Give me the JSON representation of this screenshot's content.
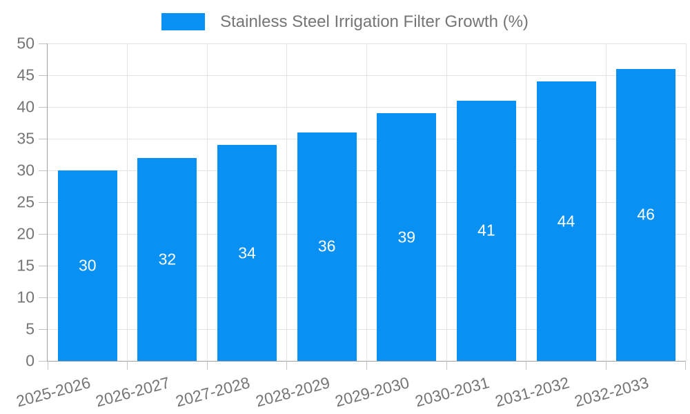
{
  "chart_data": {
    "type": "bar",
    "title": "Stainless Steel Irrigation Filter Growth (%)",
    "legend": {
      "position": "top-center",
      "entries": [
        "Stainless Steel Irrigation Filter Growth (%)"
      ]
    },
    "categories": [
      "2025-2026",
      "2026-2027",
      "2027-2028",
      "2028-2029",
      "2029-2030",
      "2030-2031",
      "2031-2032",
      "2032-2033"
    ],
    "values": [
      30,
      32,
      34,
      36,
      39,
      41,
      44,
      46
    ],
    "bar_value_labels": [
      "30",
      "32",
      "34",
      "36",
      "39",
      "41",
      "44",
      "46"
    ],
    "xlabel": "",
    "ylabel": "",
    "ylim": [
      0,
      50
    ],
    "yticks": [
      0,
      5,
      10,
      15,
      20,
      25,
      30,
      35,
      40,
      45,
      50
    ],
    "grid": "horizontal gridlines at each y tick, vertical gridlines at category boundaries",
    "x_label_rotation_deg": -15
  },
  "colors": {
    "bar": "#0890f2",
    "bar_value_text": "#ffffff",
    "axis_line": "#9e9e9e",
    "grid_line": "#e3e3e3",
    "tick_mark": "#c2c2c2",
    "axis_label_text": "#757575",
    "legend_text": "#757575",
    "background": "#ffffff"
  }
}
